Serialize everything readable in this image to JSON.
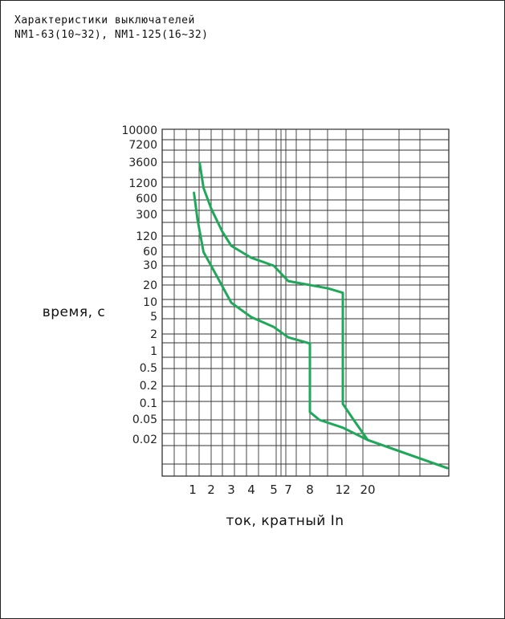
{
  "header": {
    "title_line1": "Характеристики выключателей",
    "title_line2": "NM1-63(10~32), NM1-125(16~32)"
  },
  "chart_data": {
    "type": "line",
    "title": "Характеристики выключателей NM1-63(10~32), NM1-125(16~32)",
    "xlabel": "ток, кратный  In",
    "ylabel": "время, с",
    "y_scale": "log",
    "grid": true,
    "line_color": "#20a85a",
    "y_ticks": [
      "10000",
      "7200",
      "3600",
      "1200",
      "600",
      "300",
      "120",
      "60",
      "30",
      "20",
      "10",
      "5",
      "2",
      "1",
      "0.5",
      "0.2",
      "0.1",
      "0.05",
      "0.02"
    ],
    "x_ticks": [
      "1",
      "2",
      "3",
      "4",
      "5",
      "7",
      "8",
      "12",
      "20"
    ],
    "series": [
      {
        "x": [
          1.05,
          1.2,
          1.5,
          2,
          3,
          4,
          5,
          7,
          8,
          8,
          8,
          9,
          12,
          20,
          40
        ],
        "y": [
          800,
          250,
          60,
          30,
          10,
          5,
          3,
          1.8,
          1.4,
          0.2,
          0.07,
          0.05,
          0.035,
          0.02,
          0.007
        ]
      },
      {
        "x": [
          1.3,
          1.5,
          2,
          2.5,
          3,
          4,
          5,
          7,
          10,
          12,
          12,
          12,
          15,
          20,
          40
        ],
        "y": [
          3600,
          1000,
          400,
          150,
          80,
          45,
          30,
          22,
          18,
          15,
          1,
          0.1,
          0.05,
          0.02,
          0.007
        ]
      }
    ]
  }
}
